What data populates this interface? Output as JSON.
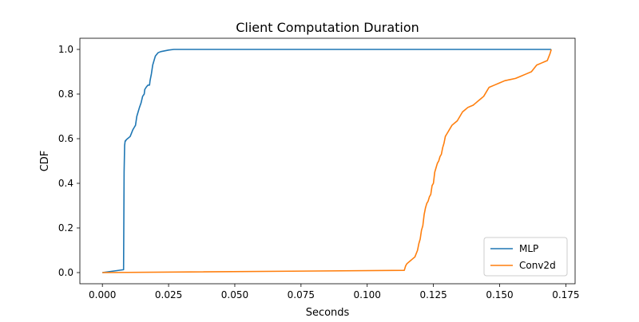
{
  "chart_data": {
    "type": "line",
    "title": "Client Computation Duration",
    "xlabel": "Seconds",
    "ylabel": "CDF",
    "xlim": [
      -0.0085,
      0.1785
    ],
    "ylim": [
      -0.05,
      1.05
    ],
    "xticks": [
      0.0,
      0.025,
      0.05,
      0.075,
      0.1,
      0.125,
      0.15,
      0.175
    ],
    "xtick_labels": [
      "0.000",
      "0.025",
      "0.050",
      "0.075",
      "0.100",
      "0.125",
      "0.150",
      "0.175"
    ],
    "yticks": [
      0.0,
      0.2,
      0.4,
      0.6,
      0.8,
      1.0
    ],
    "ytick_labels": [
      "0.0",
      "0.2",
      "0.4",
      "0.6",
      "0.8",
      "1.0"
    ],
    "grid": false,
    "legend_position": "lower right",
    "series": [
      {
        "name": "MLP",
        "color": "#1f77b4",
        "x": [
          0.0,
          0.008,
          0.0082,
          0.0084,
          0.0086,
          0.0088,
          0.009,
          0.0095,
          0.0105,
          0.0115,
          0.012,
          0.0125,
          0.013,
          0.0135,
          0.014,
          0.0143,
          0.0146,
          0.0152,
          0.0158,
          0.016,
          0.0165,
          0.0172,
          0.0178,
          0.018,
          0.0185,
          0.019,
          0.0195,
          0.02,
          0.021,
          0.022,
          0.025,
          0.027,
          0.1695
        ],
        "y": [
          0.0,
          0.013,
          0.45,
          0.57,
          0.59,
          0.59,
          0.595,
          0.6,
          0.61,
          0.64,
          0.65,
          0.66,
          0.7,
          0.72,
          0.74,
          0.75,
          0.76,
          0.79,
          0.8,
          0.82,
          0.83,
          0.84,
          0.84,
          0.86,
          0.89,
          0.93,
          0.95,
          0.97,
          0.985,
          0.99,
          0.997,
          1.0,
          1.0
        ],
        "mark": "line"
      },
      {
        "name": "Conv2d",
        "color": "#ff7f0e",
        "x": [
          0.0,
          0.114,
          0.1145,
          0.115,
          0.116,
          0.117,
          0.118,
          0.119,
          0.1195,
          0.12,
          0.1205,
          0.121,
          0.1215,
          0.122,
          0.1225,
          0.123,
          0.1235,
          0.124,
          0.1245,
          0.125,
          0.1255,
          0.126,
          0.1265,
          0.127,
          0.1275,
          0.128,
          0.1285,
          0.129,
          0.1295,
          0.13,
          0.1305,
          0.131,
          0.132,
          0.133,
          0.134,
          0.135,
          0.136,
          0.137,
          0.138,
          0.139,
          0.14,
          0.141,
          0.142,
          0.143,
          0.144,
          0.145,
          0.146,
          0.148,
          0.15,
          0.152,
          0.154,
          0.156,
          0.158,
          0.16,
          0.162,
          0.164,
          0.166,
          0.167,
          0.168,
          0.169,
          0.1695
        ],
        "y": [
          0.0,
          0.01,
          0.03,
          0.04,
          0.05,
          0.06,
          0.07,
          0.1,
          0.13,
          0.15,
          0.19,
          0.21,
          0.26,
          0.29,
          0.31,
          0.32,
          0.34,
          0.35,
          0.39,
          0.4,
          0.45,
          0.47,
          0.49,
          0.5,
          0.52,
          0.53,
          0.56,
          0.58,
          0.61,
          0.62,
          0.63,
          0.64,
          0.66,
          0.67,
          0.68,
          0.7,
          0.72,
          0.73,
          0.74,
          0.745,
          0.75,
          0.76,
          0.77,
          0.78,
          0.79,
          0.81,
          0.83,
          0.84,
          0.85,
          0.86,
          0.865,
          0.87,
          0.88,
          0.89,
          0.9,
          0.93,
          0.94,
          0.945,
          0.95,
          0.98,
          1.0
        ],
        "mark": "line"
      }
    ]
  }
}
